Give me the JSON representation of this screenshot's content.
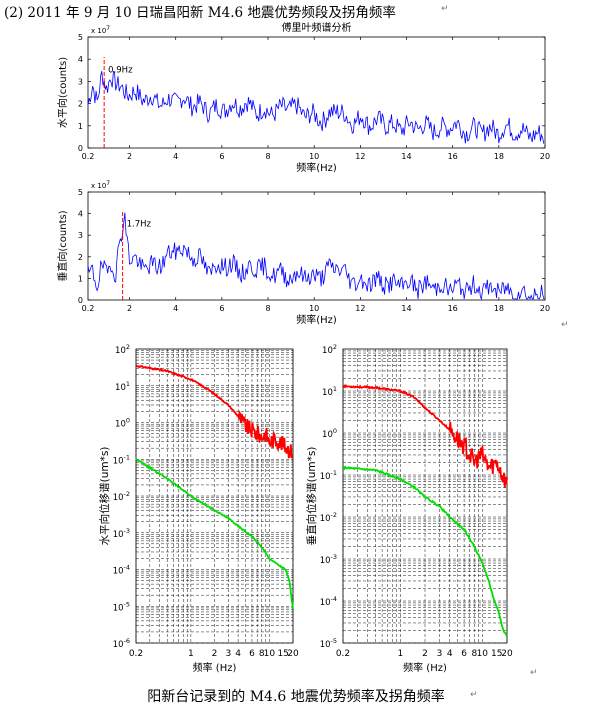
{
  "heading": "(2) 2011 年 9 月 10 日瑞昌阳新 M4.6 地震优势频段及拐角频率",
  "caption": "阳新台记录到的 M4.6 地震优势频率及拐角频率",
  "chart_data": [
    {
      "type": "line",
      "title": "傅里叶频谱分析",
      "xlabel": "频率(Hz)",
      "ylabel": "水平向(counts)",
      "y_exponent": "x 10^7",
      "xlim": [
        0.2,
        20
      ],
      "ylim": [
        0,
        5
      ],
      "xticks": [
        2,
        4,
        6,
        8,
        10,
        12,
        14,
        16,
        18,
        20
      ],
      "yticks": [
        0,
        1,
        2,
        3,
        4,
        5
      ],
      "marker": {
        "x": 0.9,
        "label": "0.9Hz"
      },
      "series": [
        {
          "color": "#0000ff",
          "x": [
            0.2,
            0.4,
            0.6,
            0.8,
            1,
            1.2,
            1.5,
            2,
            2.5,
            3,
            3.5,
            4,
            4.5,
            5,
            5.5,
            6,
            6.5,
            7,
            7.5,
            8,
            8.5,
            9,
            9.5,
            10,
            10.5,
            11,
            11.5,
            12,
            12.5,
            13,
            13.5,
            14,
            14.5,
            15,
            15.5,
            16,
            16.5,
            17,
            17.5,
            18,
            18.5,
            19,
            19.5,
            20
          ],
          "y": [
            1.8,
            2.9,
            2.2,
            3.2,
            2.6,
            3.4,
            2.7,
            2.5,
            2.3,
            2.2,
            2.0,
            2.2,
            2.1,
            1.9,
            1.7,
            1.8,
            1.9,
            2.0,
            1.7,
            1.6,
            1.7,
            1.9,
            1.6,
            1.4,
            1.3,
            1.8,
            1.2,
            1.3,
            1.1,
            1.2,
            0.9,
            1.0,
            1.0,
            0.9,
            0.8,
            1.1,
            0.8,
            0.8,
            0.8,
            0.8,
            0.9,
            0.7,
            0.6,
            0.5
          ]
        }
      ]
    },
    {
      "type": "line",
      "xlabel": "频率(Hz)",
      "ylabel": "垂直向(counts)",
      "y_exponent": "x 10^7",
      "xlim": [
        0.2,
        20
      ],
      "ylim": [
        0,
        5
      ],
      "xticks": [
        2,
        4,
        6,
        8,
        10,
        12,
        14,
        16,
        18,
        20
      ],
      "yticks": [
        0,
        1,
        2,
        3,
        4,
        5
      ],
      "marker": {
        "x": 1.7,
        "label": "1.7Hz"
      },
      "series": [
        {
          "color": "#0000ff",
          "x": [
            0.2,
            0.4,
            0.6,
            0.8,
            1,
            1.2,
            1.4,
            1.6,
            1.8,
            2,
            2.5,
            3,
            3.5,
            4,
            4.5,
            5,
            5.5,
            6,
            6.5,
            7,
            7.5,
            8,
            8.5,
            9,
            9.5,
            10,
            10.5,
            11,
            11.5,
            12,
            12.5,
            13,
            13.5,
            14,
            14.5,
            15,
            15.5,
            16,
            16.5,
            17,
            17.5,
            18,
            18.5,
            19,
            19.5,
            20
          ],
          "y": [
            1.0,
            1.4,
            0.8,
            1.5,
            1.1,
            1.9,
            1.2,
            2.8,
            3.8,
            2.0,
            1.6,
            1.5,
            1.8,
            2.4,
            2.2,
            1.9,
            1.3,
            1.7,
            1.5,
            1.3,
            1.6,
            1.3,
            1.2,
            1.1,
            1.2,
            1.0,
            1.3,
            1.6,
            1.0,
            0.8,
            0.9,
            0.8,
            0.7,
            0.8,
            0.6,
            0.7,
            0.6,
            0.6,
            0.5,
            0.6,
            0.5,
            0.5,
            0.4,
            0.3,
            0.2,
            0.2
          ]
        }
      ]
    },
    {
      "type": "line",
      "xlabel": "频率 (Hz)",
      "ylabel": "水平向位移谱(um*s)",
      "x_scale": "log",
      "y_scale": "log",
      "xlim": [
        0.2,
        20
      ],
      "ylim": [
        1e-06,
        100
      ],
      "xtick_labels": [
        "0.2",
        "1",
        "2",
        "3",
        "4",
        "6",
        "8",
        "10",
        "15",
        "20"
      ],
      "xtick_values": [
        0.2,
        1,
        2,
        3,
        4,
        6,
        8,
        10,
        15,
        20
      ],
      "ytick_exponents": [
        -6,
        -5,
        -4,
        -3,
        -2,
        -1,
        0,
        1,
        2
      ],
      "grid": true,
      "series": [
        {
          "color": "#ff0000",
          "x": [
            0.2,
            0.5,
            1,
            1.5,
            2,
            3,
            4,
            5,
            6,
            7,
            8,
            9,
            10,
            12,
            15,
            20
          ],
          "y": [
            35,
            25,
            15,
            9,
            6,
            3,
            1.5,
            0.8,
            0.6,
            0.5,
            0.4,
            0.5,
            0.3,
            0.35,
            0.25,
            0.15
          ]
        },
        {
          "color": "#00dd00",
          "x": [
            0.2,
            0.5,
            1,
            1.5,
            2,
            3,
            4,
            6,
            8,
            10,
            12,
            14,
            16,
            18,
            20
          ],
          "y": [
            0.1,
            0.03,
            0.01,
            0.006,
            0.004,
            0.0025,
            0.0015,
            0.0008,
            0.0004,
            0.0002,
            0.00015,
            0.00012,
            0.0001,
            5e-05,
            8e-06
          ]
        }
      ]
    },
    {
      "type": "line",
      "xlabel": "频率 (Hz)",
      "ylabel": "垂直向位移谱(um*s)",
      "x_scale": "log",
      "y_scale": "log",
      "xlim": [
        0.2,
        20
      ],
      "ylim": [
        1e-05,
        100
      ],
      "xtick_labels": [
        "0.2",
        "1",
        "2",
        "3",
        "4",
        "6",
        "8",
        "10",
        "15",
        "20"
      ],
      "xtick_values": [
        0.2,
        1,
        2,
        3,
        4,
        6,
        8,
        10,
        15,
        20
      ],
      "ytick_exponents": [
        -5,
        -4,
        -3,
        -2,
        -1,
        0,
        1,
        2
      ],
      "grid": true,
      "series": [
        {
          "color": "#ff0000",
          "x": [
            0.2,
            0.5,
            1,
            1.5,
            2,
            3,
            4,
            5,
            6,
            7,
            8,
            9,
            10,
            12,
            15,
            20
          ],
          "y": [
            13,
            12,
            10,
            7,
            4,
            2,
            1.2,
            0.7,
            0.5,
            0.3,
            0.2,
            0.25,
            0.3,
            0.15,
            0.2,
            0.06
          ]
        },
        {
          "color": "#00dd00",
          "x": [
            0.2,
            0.5,
            1,
            1.5,
            2,
            3,
            4,
            6,
            8,
            10,
            12,
            14,
            16,
            18,
            20
          ],
          "y": [
            0.15,
            0.13,
            0.08,
            0.05,
            0.03,
            0.018,
            0.01,
            0.005,
            0.002,
            0.0008,
            0.0003,
            0.0001,
            5e-05,
            2e-05,
            1.5e-05
          ]
        }
      ]
    }
  ]
}
